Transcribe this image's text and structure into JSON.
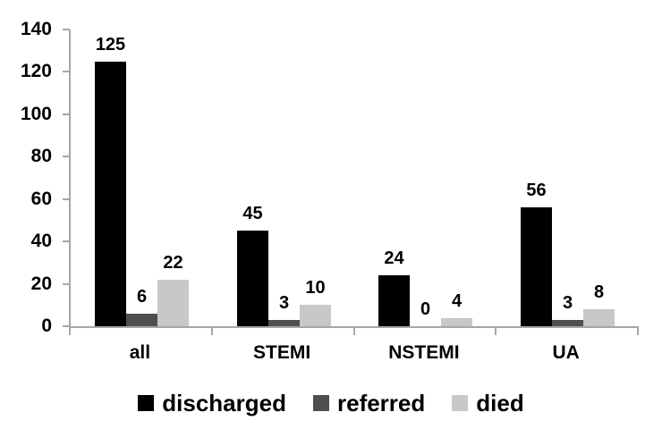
{
  "chart_data": {
    "type": "bar",
    "title": "",
    "xlabel": "",
    "ylabel": "",
    "categories": [
      "all",
      "STEMI",
      "NSTEMI",
      "UA"
    ],
    "series": [
      {
        "name": "discharged",
        "color": "#000000",
        "values": [
          125,
          45,
          24,
          56
        ]
      },
      {
        "name": "referred",
        "color": "#4f4f4f",
        "values": [
          6,
          3,
          0,
          3
        ]
      },
      {
        "name": "died",
        "color": "#c8c8c8",
        "values": [
          22,
          10,
          4,
          8
        ]
      }
    ],
    "ylim": [
      0,
      140
    ],
    "yticks": [
      0,
      20,
      40,
      60,
      80,
      100,
      120,
      140
    ],
    "grid": false,
    "data_labels": true,
    "legend_position": "bottom",
    "axis_color": "#a6a6a6",
    "background_color": "#ffffff",
    "text_color": "#000000"
  }
}
